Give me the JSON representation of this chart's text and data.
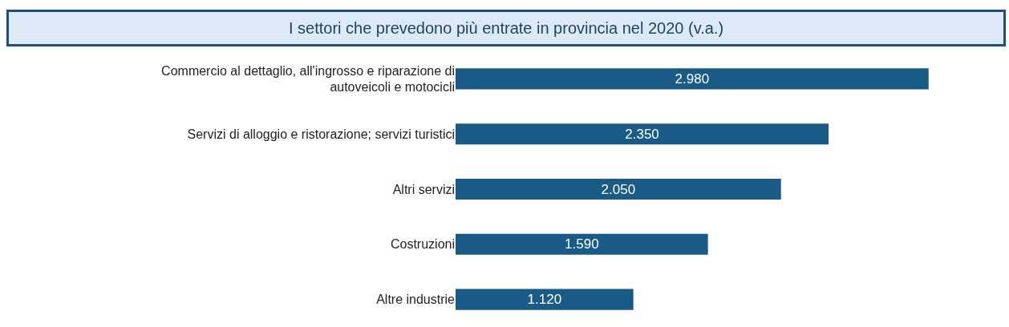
{
  "chart_data": {
    "type": "bar",
    "title": "I settori che prevedono più entrate in provincia nel 2020 (v.a.)",
    "orientation": "horizontal",
    "categories": [
      "Commercio al dettaglio, all'ingrosso e riparazione di autoveicoli e motocicli",
      "Servizi di alloggio e ristorazione; servizi turistici",
      "Altri servizi",
      "Costruzioni",
      "Altre industrie"
    ],
    "values": [
      2980,
      2350,
      2050,
      1590,
      1120
    ],
    "value_labels": [
      "2.980",
      "2.350",
      "2.050",
      "1.590",
      "1.120"
    ],
    "color": "#1a5a87",
    "tick_labels": "y",
    "legend": false
  }
}
